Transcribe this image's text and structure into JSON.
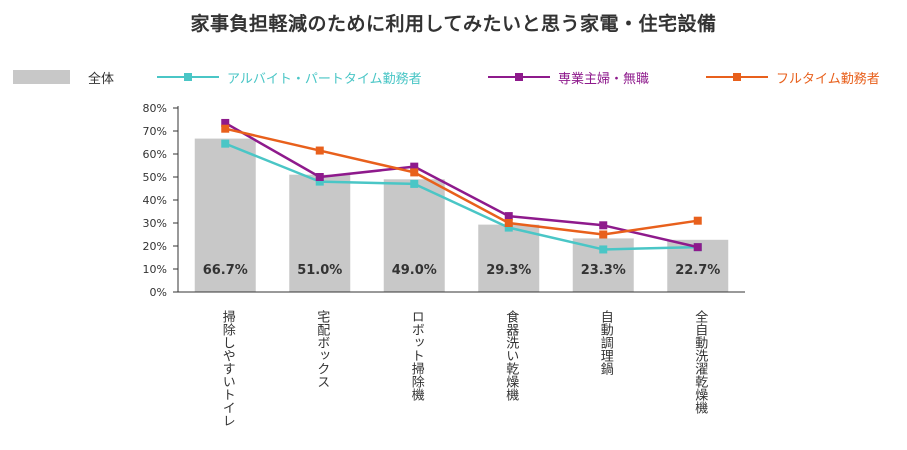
{
  "chart_data": {
    "type": "bar+line",
    "title": "家事負担軽減のために利用してみたいと思う家電・住宅設備",
    "categories": [
      "掃除しやすいトイレ",
      "宅配ボックス",
      "ロボット掃除機",
      "食器洗い乾燥機",
      "自動調理鍋",
      "全自動洗濯乾燥機"
    ],
    "ylim": [
      0,
      80
    ],
    "yticks": [
      "0%",
      "10%",
      "20%",
      "30%",
      "40%",
      "50%",
      "60%",
      "70%",
      "80%"
    ],
    "bar_series": {
      "name": "全体",
      "color": "#c8c8c8",
      "values": [
        66.7,
        51.0,
        49.0,
        29.3,
        23.3,
        22.7
      ],
      "labels": [
        "66.7%",
        "51.0%",
        "49.0%",
        "29.3%",
        "23.3%",
        "22.7%"
      ]
    },
    "series": [
      {
        "name": "アルバイト・パートタイム勤務者",
        "color": "#4ac6c6",
        "values": [
          64.5,
          48.0,
          47.0,
          28.0,
          18.5,
          19.5
        ]
      },
      {
        "name": "専業主婦・無職",
        "color": "#8e1a8c",
        "values": [
          73.5,
          50.0,
          54.5,
          33.0,
          29.0,
          19.5
        ]
      },
      {
        "name": "フルタイム勤務者",
        "color": "#e8601c",
        "values": [
          71.0,
          61.5,
          52.0,
          30.0,
          25.0,
          31.0
        ]
      }
    ]
  }
}
